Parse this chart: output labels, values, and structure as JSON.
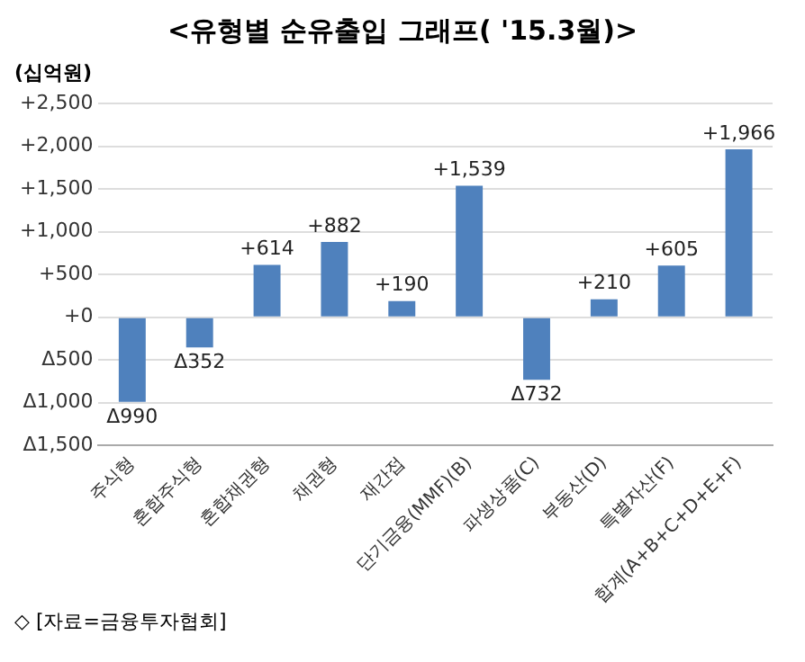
{
  "chart_data": {
    "type": "bar",
    "title": "<유형별 순유출입 그래프( '15.3월)>",
    "ylabel": "(십억원)",
    "categories": [
      "주식형",
      "혼합주식형",
      "혼합채권형",
      "채권형",
      "재간접",
      "단기금융(MMF)(B)",
      "파생상품(C)",
      "부동산(D)",
      "특별자산(F)",
      "합계(A+B+C+D+E+F)"
    ],
    "values": [
      -990,
      -352,
      614,
      882,
      190,
      1539,
      -732,
      210,
      605,
      1966
    ],
    "value_labels": [
      "Δ990",
      "Δ352",
      "+614",
      "+882",
      "+190",
      "+1,539",
      "Δ732",
      "+210",
      "+605",
      "+1,966"
    ],
    "color": "#4f81bd",
    "ylim": [
      -1500,
      2500
    ],
    "yticks": [
      {
        "value": -1500,
        "label": "Δ1,500"
      },
      {
        "value": -1000,
        "label": "Δ1,000"
      },
      {
        "value": -500,
        "label": "Δ500"
      },
      {
        "value": 0,
        "label": "+0"
      },
      {
        "value": 500,
        "label": "+500"
      },
      {
        "value": 1000,
        "label": "+1,000"
      },
      {
        "value": 1500,
        "label": "+1,500"
      },
      {
        "value": 2000,
        "label": "+2,000"
      },
      {
        "value": 2500,
        "label": "+2,500"
      }
    ],
    "grid": "y",
    "annotations": [
      "◇ [자료=금융투자협회]"
    ]
  }
}
